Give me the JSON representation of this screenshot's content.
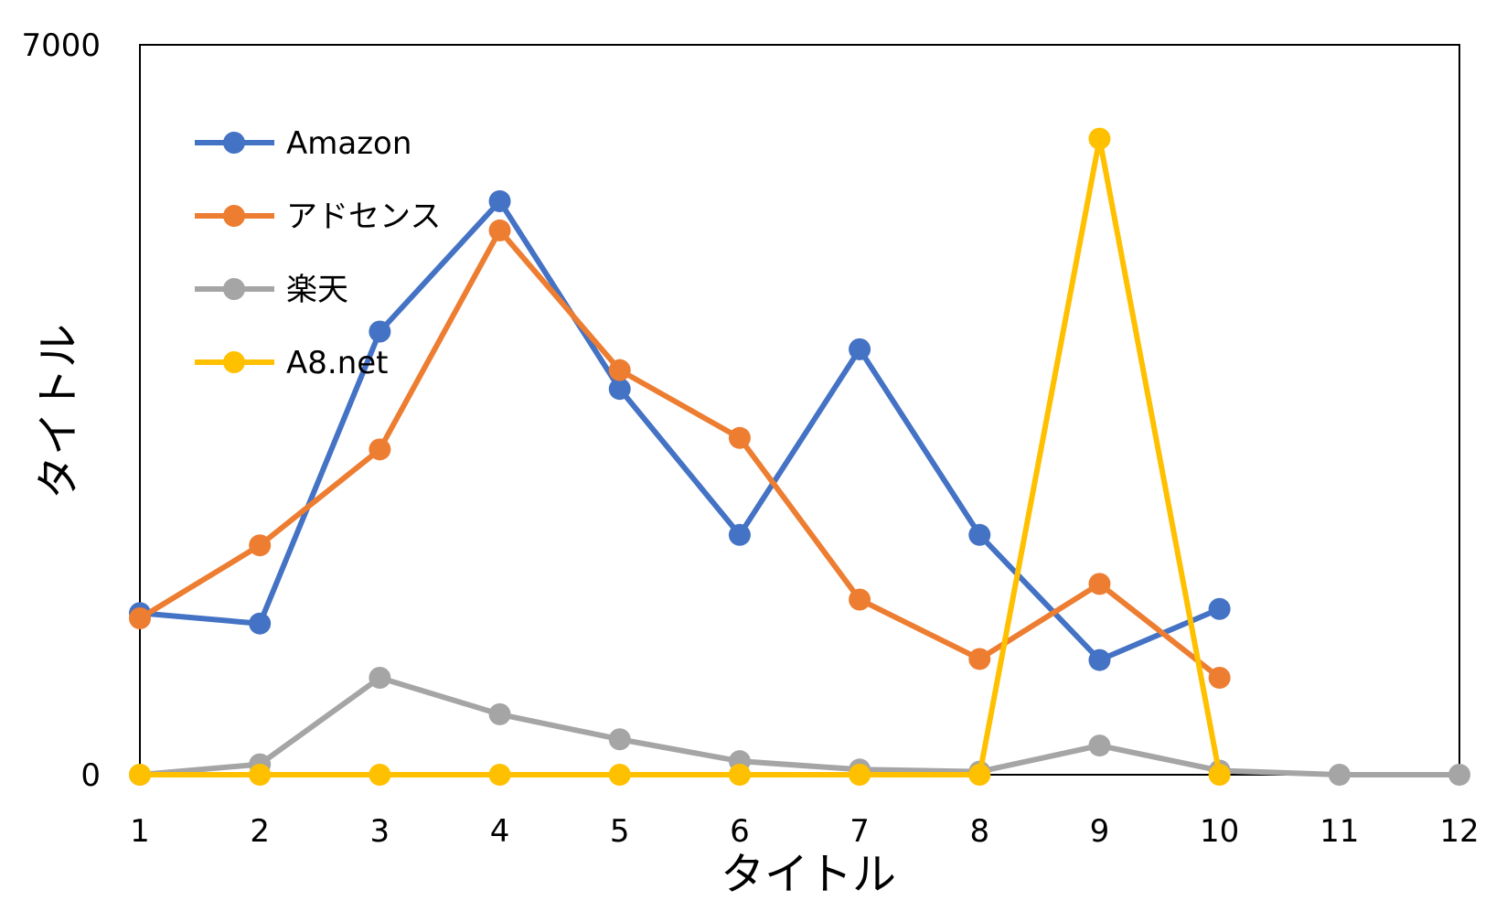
{
  "chart_data": {
    "type": "line",
    "title": "",
    "xlabel": "タイトル",
    "ylabel": "タイトル",
    "x": [
      1,
      2,
      3,
      4,
      5,
      6,
      7,
      8,
      9,
      10,
      11,
      12
    ],
    "xlim": [
      1,
      12
    ],
    "ylim": [
      0,
      7000
    ],
    "y_tick_labels": [
      "0",
      "7000"
    ],
    "grid": false,
    "legend_position": "top-left",
    "series": [
      {
        "name": "Amazon",
        "color": "#4472C4",
        "values": [
          1550,
          1450,
          4250,
          5500,
          3700,
          2300,
          4080,
          2300,
          1100,
          1590,
          null,
          null
        ]
      },
      {
        "name": "アドセンス",
        "color": "#ED7D31",
        "values": [
          1500,
          2200,
          3120,
          5220,
          3880,
          3230,
          1680,
          1110,
          1830,
          930,
          null,
          null
        ]
      },
      {
        "name": "楽天",
        "color": "#A5A5A5",
        "values": [
          0,
          100,
          930,
          580,
          340,
          130,
          50,
          30,
          280,
          40,
          0,
          0
        ]
      },
      {
        "name": "A8.net",
        "color": "#FFC000",
        "values": [
          0,
          0,
          0,
          0,
          0,
          0,
          0,
          0,
          6100,
          0,
          null,
          null
        ]
      }
    ]
  }
}
